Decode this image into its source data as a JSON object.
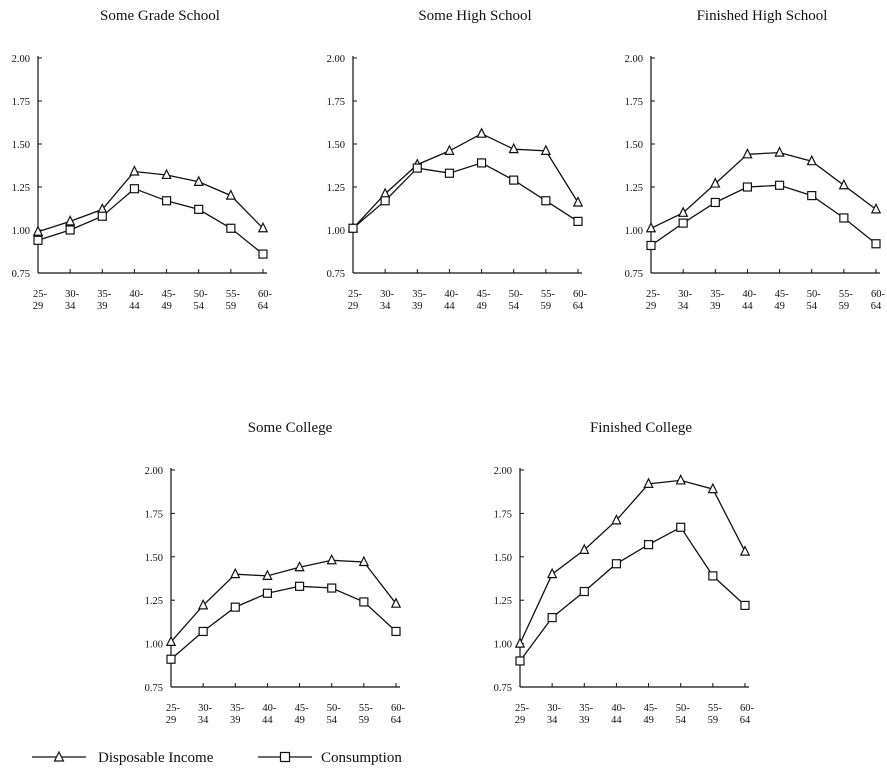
{
  "chart_data": [
    {
      "type": "line",
      "title": "Some Grade School",
      "categories": [
        [
          "25-",
          "29"
        ],
        [
          "30-",
          "34"
        ],
        [
          "35-",
          "39"
        ],
        [
          "40-",
          "44"
        ],
        [
          "45-",
          "49"
        ],
        [
          "50-",
          "54"
        ],
        [
          "55-",
          "59"
        ],
        [
          "60-",
          "64"
        ]
      ],
      "ylim": [
        0.75,
        2.0
      ],
      "yticks": [
        "0.75",
        "1.00",
        "1.25",
        "1.50",
        "1.75",
        "2.00"
      ],
      "series": [
        {
          "name": "Disposable Income",
          "marker": "triangle",
          "values": [
            0.99,
            1.05,
            1.12,
            1.34,
            1.32,
            1.28,
            1.2,
            1.01
          ]
        },
        {
          "name": "Consumption",
          "marker": "square",
          "values": [
            0.94,
            1.0,
            1.08,
            1.24,
            1.17,
            1.12,
            1.01,
            0.86
          ]
        }
      ]
    },
    {
      "type": "line",
      "title": "Some High School",
      "categories": [
        [
          "25-",
          "29"
        ],
        [
          "30-",
          "34"
        ],
        [
          "35-",
          "39"
        ],
        [
          "40-",
          "44"
        ],
        [
          "45-",
          "49"
        ],
        [
          "50-",
          "54"
        ],
        [
          "55-",
          "59"
        ],
        [
          "60-",
          "64"
        ]
      ],
      "ylim": [
        0.75,
        2.0
      ],
      "yticks": [
        "0.75",
        "1.00",
        "1.25",
        "1.50",
        "1.75",
        "2.00"
      ],
      "series": [
        {
          "name": "Disposable Income",
          "marker": "triangle",
          "values": [
            1.01,
            1.21,
            1.38,
            1.46,
            1.56,
            1.47,
            1.46,
            1.16
          ]
        },
        {
          "name": "Consumption",
          "marker": "square",
          "values": [
            1.01,
            1.17,
            1.36,
            1.33,
            1.39,
            1.29,
            1.17,
            1.05
          ]
        }
      ]
    },
    {
      "type": "line",
      "title": "Finished High School",
      "categories": [
        [
          "25-",
          "29"
        ],
        [
          "30-",
          "34"
        ],
        [
          "35-",
          "39"
        ],
        [
          "40-",
          "44"
        ],
        [
          "45-",
          "49"
        ],
        [
          "50-",
          "54"
        ],
        [
          "55-",
          "59"
        ],
        [
          "60-",
          "64"
        ]
      ],
      "ylim": [
        0.75,
        2.0
      ],
      "yticks": [
        "0.75",
        "1.00",
        "1.25",
        "1.50",
        "1.75",
        "2.00"
      ],
      "series": [
        {
          "name": "Disposable Income",
          "marker": "triangle",
          "values": [
            1.01,
            1.1,
            1.27,
            1.44,
            1.45,
            1.4,
            1.26,
            1.12
          ]
        },
        {
          "name": "Consumption",
          "marker": "square",
          "values": [
            0.91,
            1.04,
            1.16,
            1.25,
            1.26,
            1.2,
            1.07,
            0.92
          ]
        }
      ]
    },
    {
      "type": "line",
      "title": "Some College",
      "categories": [
        [
          "25-",
          "29"
        ],
        [
          "30-",
          "34"
        ],
        [
          "35-",
          "39"
        ],
        [
          "40-",
          "44"
        ],
        [
          "45-",
          "49"
        ],
        [
          "50-",
          "54"
        ],
        [
          "55-",
          "59"
        ],
        [
          "60-",
          "64"
        ]
      ],
      "ylim": [
        0.75,
        2.0
      ],
      "yticks": [
        "0.75",
        "1.00",
        "1.25",
        "1.50",
        "1.75",
        "2.00"
      ],
      "series": [
        {
          "name": "Disposable Income",
          "marker": "triangle",
          "values": [
            1.01,
            1.22,
            1.4,
            1.39,
            1.44,
            1.48,
            1.47,
            1.23
          ]
        },
        {
          "name": "Consumption",
          "marker": "square",
          "values": [
            0.91,
            1.07,
            1.21,
            1.29,
            1.33,
            1.32,
            1.24,
            1.07
          ]
        }
      ]
    },
    {
      "type": "line",
      "title": "Finished College",
      "categories": [
        [
          "25-",
          "29"
        ],
        [
          "30-",
          "34"
        ],
        [
          "35-",
          "39"
        ],
        [
          "40-",
          "44"
        ],
        [
          "45-",
          "49"
        ],
        [
          "50-",
          "54"
        ],
        [
          "55-",
          "59"
        ],
        [
          "60-",
          "64"
        ]
      ],
      "ylim": [
        0.75,
        2.0
      ],
      "yticks": [
        "0.75",
        "1.00",
        "1.25",
        "1.50",
        "1.75",
        "2.00"
      ],
      "series": [
        {
          "name": "Disposable Income",
          "marker": "triangle",
          "values": [
            1.0,
            1.4,
            1.54,
            1.71,
            1.92,
            1.94,
            1.89,
            1.53
          ]
        },
        {
          "name": "Consumption",
          "marker": "square",
          "values": [
            0.9,
            1.15,
            1.3,
            1.46,
            1.57,
            1.67,
            1.39,
            1.22
          ]
        }
      ]
    }
  ],
  "legend": {
    "items": [
      {
        "label": "Disposable Income",
        "marker": "triangle"
      },
      {
        "label": "Consumption",
        "marker": "square"
      }
    ]
  },
  "colors": {
    "ink": "#111111",
    "background": "#ffffff"
  }
}
